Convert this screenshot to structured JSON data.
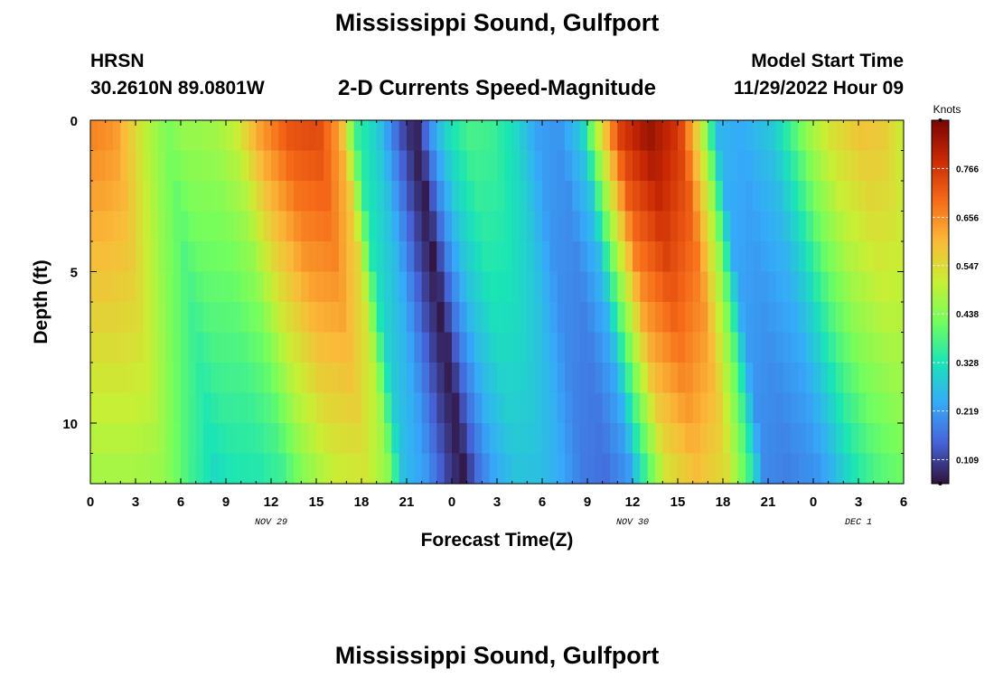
{
  "header": {
    "title": "Mississippi Sound, Gulfport",
    "station": "HRSN",
    "coordinates": "30.2610N  89.0801W",
    "subtitle": "2-D Currents Speed-Magnitude",
    "model_start_label": "Model Start Time",
    "model_start_value": "11/29/2022 Hour 09"
  },
  "footer": {
    "title": "Mississippi Sound, Gulfport"
  },
  "chart_data": {
    "type": "heatmap",
    "title": "2-D Currents Speed-Magnitude",
    "xlabel": "Forecast Time(Z)",
    "ylabel": "Depth (ft)",
    "x_range_hours": [
      0,
      54
    ],
    "x_ticks": [
      {
        "hour": 0,
        "label": "0"
      },
      {
        "hour": 3,
        "label": "3"
      },
      {
        "hour": 6,
        "label": "6"
      },
      {
        "hour": 9,
        "label": "9"
      },
      {
        "hour": 12,
        "label": "12"
      },
      {
        "hour": 15,
        "label": "15"
      },
      {
        "hour": 18,
        "label": "18"
      },
      {
        "hour": 21,
        "label": "21"
      },
      {
        "hour": 24,
        "label": "0"
      },
      {
        "hour": 27,
        "label": "3"
      },
      {
        "hour": 30,
        "label": "6"
      },
      {
        "hour": 33,
        "label": "9"
      },
      {
        "hour": 36,
        "label": "12"
      },
      {
        "hour": 39,
        "label": "15"
      },
      {
        "hour": 42,
        "label": "18"
      },
      {
        "hour": 45,
        "label": "21"
      },
      {
        "hour": 48,
        "label": "0"
      },
      {
        "hour": 51,
        "label": "3"
      },
      {
        "hour": 54,
        "label": "6"
      }
    ],
    "date_labels": [
      {
        "hour": 12,
        "label": "NOV 29"
      },
      {
        "hour": 36,
        "label": "NOV 30"
      },
      {
        "hour": 51,
        "label": "DEC 1"
      }
    ],
    "y_range_ft": [
      0,
      12
    ],
    "y_ticks": [
      {
        "value": 0,
        "label": "0"
      },
      {
        "value": 5,
        "label": "5"
      },
      {
        "value": 10,
        "label": "10"
      }
    ],
    "depth_levels_ft": [
      0.5,
      1.5,
      2.5,
      3.5,
      4.5,
      5.5,
      6.5,
      7.5,
      8.5,
      9.5,
      10.5,
      11.5
    ],
    "time_step_hours": 0.5,
    "speed_profile_surface_knots": [
      [
        0,
        0.66
      ],
      [
        1.5,
        0.64
      ],
      [
        3.5,
        0.5
      ],
      [
        5,
        0.42
      ],
      [
        6,
        0.45
      ],
      [
        8,
        0.46
      ],
      [
        9.5,
        0.5
      ],
      [
        11,
        0.62
      ],
      [
        13,
        0.72
      ],
      [
        15,
        0.74
      ],
      [
        16.5,
        0.62
      ],
      [
        17.5,
        0.36
      ],
      [
        19,
        0.28
      ],
      [
        20.5,
        0.12
      ],
      [
        21.5,
        0.05
      ],
      [
        22.5,
        0.2
      ],
      [
        23.5,
        0.3
      ],
      [
        25,
        0.37
      ],
      [
        26.5,
        0.36
      ],
      [
        28,
        0.31
      ],
      [
        29.5,
        0.22
      ],
      [
        31,
        0.2
      ],
      [
        32.5,
        0.28
      ],
      [
        33.5,
        0.48
      ],
      [
        35,
        0.75
      ],
      [
        37,
        0.84
      ],
      [
        39,
        0.76
      ],
      [
        40.5,
        0.5
      ],
      [
        41.5,
        0.25
      ],
      [
        43,
        0.23
      ],
      [
        45,
        0.27
      ],
      [
        46,
        0.33
      ],
      [
        47.5,
        0.45
      ],
      [
        49,
        0.53
      ],
      [
        51,
        0.58
      ],
      [
        52.5,
        0.57
      ],
      [
        54,
        0.5
      ]
    ],
    "colorbar": {
      "label": "Knots",
      "range": [
        0.055,
        0.875
      ],
      "ticks": [
        "0.109",
        "0.219",
        "0.328",
        "0.438",
        "0.547",
        "0.656",
        "0.766"
      ],
      "tick_values": [
        0.109,
        0.219,
        0.328,
        0.438,
        0.547,
        0.656,
        0.766
      ]
    },
    "colormap": [
      "#30123b",
      "#4662d7",
      "#36aaf9",
      "#1ae4b6",
      "#72fe5e",
      "#c8ef34",
      "#faba39",
      "#f66b19",
      "#ca2a04",
      "#7a0403"
    ]
  }
}
